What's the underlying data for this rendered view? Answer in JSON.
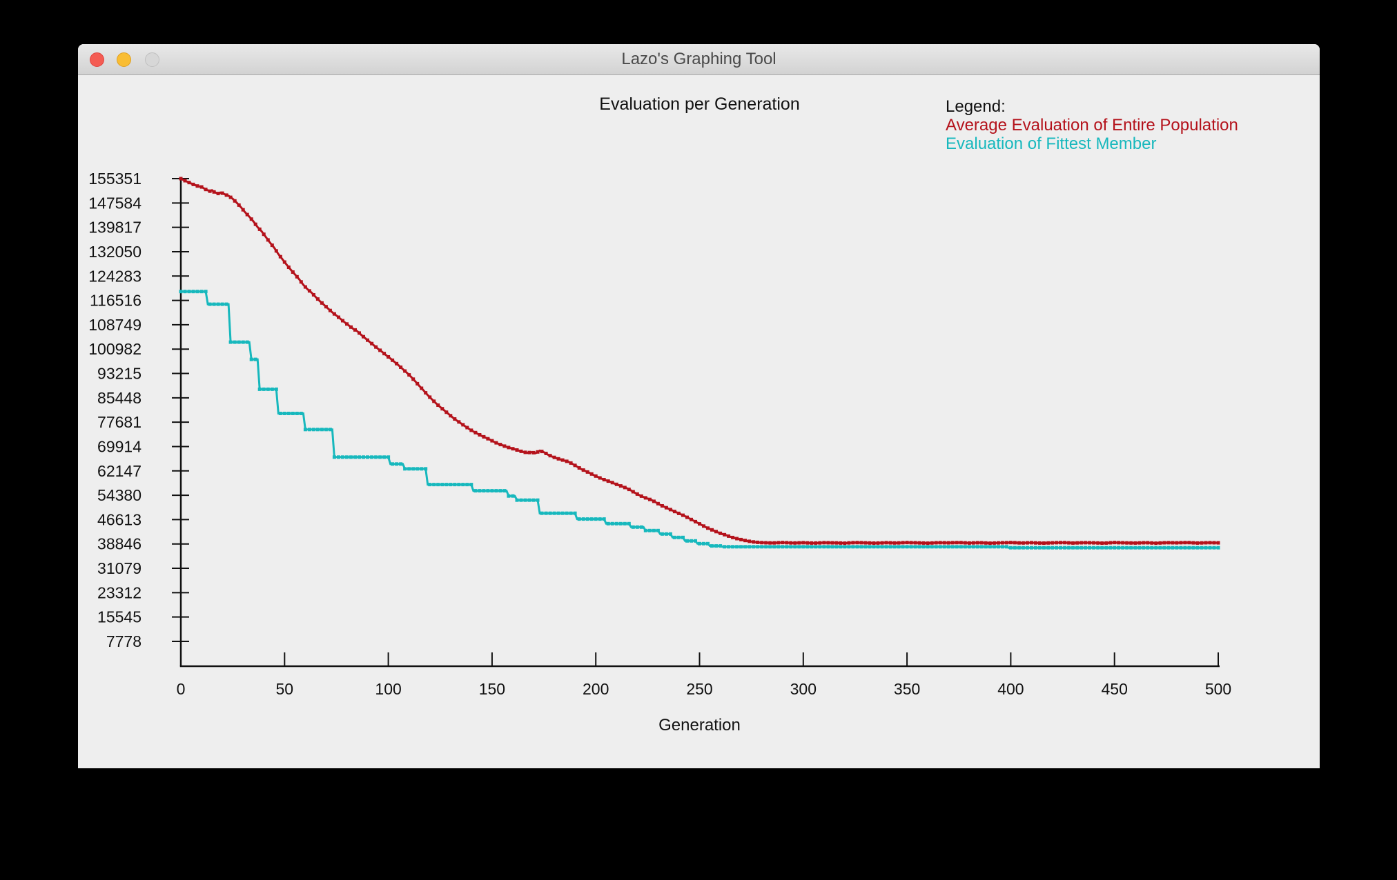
{
  "window": {
    "title": "Lazo's Graphing Tool"
  },
  "colors": {
    "series_avg": "#b4121b",
    "series_best": "#17b8bd",
    "axis": "#111111",
    "window_bg": "#eeeeee"
  },
  "chart_data": {
    "type": "line",
    "title": "Evaluation per Generation",
    "xlabel": "Generation",
    "legend_title": "Legend:",
    "legend_position": "top-right",
    "grid": false,
    "xlim": [
      0,
      500
    ],
    "x_ticks": [
      0,
      50,
      100,
      150,
      200,
      250,
      300,
      350,
      400,
      450,
      500
    ],
    "y_ticks": [
      155351,
      147584,
      139817,
      132050,
      124283,
      116516,
      108749,
      100982,
      93215,
      85448,
      77681,
      69914,
      62147,
      54380,
      46613,
      38846,
      31079,
      23312,
      15545,
      7778
    ],
    "series": [
      {
        "name": "Average Evaluation of Entire Population",
        "color": "#b4121b",
        "style": "noisy-line",
        "points": [
          [
            0,
            155351
          ],
          [
            2,
            154700
          ],
          [
            4,
            154100
          ],
          [
            6,
            153500
          ],
          [
            8,
            153000
          ],
          [
            10,
            152700
          ],
          [
            12,
            151900
          ],
          [
            14,
            151350
          ],
          [
            15,
            151650
          ],
          [
            16,
            151100
          ],
          [
            18,
            150600
          ],
          [
            19,
            150900
          ],
          [
            20,
            150700
          ],
          [
            22,
            150100
          ],
          [
            23,
            149900
          ],
          [
            25,
            148900
          ],
          [
            27,
            147600
          ],
          [
            29,
            146200
          ],
          [
            31,
            144600
          ],
          [
            33,
            143200
          ],
          [
            35,
            141700
          ],
          [
            37,
            139900
          ],
          [
            39,
            138500
          ],
          [
            41,
            136700
          ],
          [
            43,
            134900
          ],
          [
            45,
            133300
          ],
          [
            47,
            131300
          ],
          [
            49,
            129600
          ],
          [
            51,
            127900
          ],
          [
            53,
            126300
          ],
          [
            55,
            124800
          ],
          [
            57,
            123300
          ],
          [
            59,
            121500
          ],
          [
            61,
            120100
          ],
          [
            63,
            119000
          ],
          [
            65,
            117600
          ],
          [
            67,
            116300
          ],
          [
            69,
            115100
          ],
          [
            71,
            113900
          ],
          [
            73,
            112700
          ],
          [
            75,
            111700
          ],
          [
            77,
            110600
          ],
          [
            79,
            109500
          ],
          [
            81,
            108500
          ],
          [
            83,
            107500
          ],
          [
            85,
            106700
          ],
          [
            87,
            105500
          ],
          [
            89,
            104400
          ],
          [
            91,
            103300
          ],
          [
            93,
            102200
          ],
          [
            95,
            101100
          ],
          [
            97,
            100100
          ],
          [
            99,
            99000
          ],
          [
            101,
            98000
          ],
          [
            103,
            96900
          ],
          [
            105,
            95800
          ],
          [
            107,
            94600
          ],
          [
            109,
            93400
          ],
          [
            111,
            92100
          ],
          [
            113,
            90700
          ],
          [
            115,
            89200
          ],
          [
            117,
            87800
          ],
          [
            119,
            86300
          ],
          [
            121,
            85000
          ],
          [
            123,
            83700
          ],
          [
            125,
            82500
          ],
          [
            127,
            81400
          ],
          [
            129,
            80300
          ],
          [
            131,
            79200
          ],
          [
            133,
            78200
          ],
          [
            135,
            77300
          ],
          [
            137,
            76400
          ],
          [
            139,
            75500
          ],
          [
            141,
            74700
          ],
          [
            143,
            74000
          ],
          [
            145,
            73300
          ],
          [
            147,
            72700
          ],
          [
            149,
            72100
          ],
          [
            151,
            71400
          ],
          [
            153,
            70800
          ],
          [
            155,
            70300
          ],
          [
            157,
            69800
          ],
          [
            159,
            69400
          ],
          [
            161,
            69000
          ],
          [
            163,
            68600
          ],
          [
            165,
            68200
          ],
          [
            167,
            67900
          ],
          [
            169,
            68100
          ],
          [
            171,
            67800
          ],
          [
            173,
            68600
          ],
          [
            175,
            68100
          ],
          [
            177,
            67300
          ],
          [
            179,
            66700
          ],
          [
            181,
            66200
          ],
          [
            183,
            65800
          ],
          [
            185,
            65400
          ],
          [
            187,
            65000
          ],
          [
            189,
            64300
          ],
          [
            191,
            63500
          ],
          [
            193,
            62700
          ],
          [
            195,
            62100
          ],
          [
            197,
            61500
          ],
          [
            199,
            60800
          ],
          [
            201,
            60200
          ],
          [
            203,
            59600
          ],
          [
            205,
            59100
          ],
          [
            207,
            58700
          ],
          [
            209,
            58100
          ],
          [
            211,
            57600
          ],
          [
            213,
            57100
          ],
          [
            215,
            56600
          ],
          [
            217,
            55900
          ],
          [
            219,
            55100
          ],
          [
            221,
            54400
          ],
          [
            223,
            53800
          ],
          [
            225,
            53300
          ],
          [
            227,
            52800
          ],
          [
            229,
            52100
          ],
          [
            231,
            51300
          ],
          [
            233,
            50700
          ],
          [
            235,
            50100
          ],
          [
            237,
            49500
          ],
          [
            239,
            48900
          ],
          [
            241,
            48300
          ],
          [
            243,
            47700
          ],
          [
            245,
            47000
          ],
          [
            247,
            46300
          ],
          [
            249,
            45600
          ],
          [
            251,
            44900
          ],
          [
            253,
            44200
          ],
          [
            255,
            43600
          ],
          [
            257,
            43100
          ],
          [
            259,
            42500
          ],
          [
            261,
            42000
          ],
          [
            263,
            41600
          ],
          [
            265,
            41100
          ],
          [
            267,
            40700
          ],
          [
            269,
            40400
          ],
          [
            271,
            40100
          ],
          [
            273,
            39800
          ],
          [
            275,
            39600
          ],
          [
            277,
            39400
          ],
          [
            279,
            39300
          ],
          [
            281,
            39250
          ],
          [
            285,
            39150
          ],
          [
            290,
            39300
          ],
          [
            295,
            39150
          ],
          [
            300,
            39250
          ],
          [
            305,
            39100
          ],
          [
            310,
            39250
          ],
          [
            315,
            39200
          ],
          [
            320,
            39100
          ],
          [
            325,
            39300
          ],
          [
            330,
            39200
          ],
          [
            335,
            39100
          ],
          [
            340,
            39250
          ],
          [
            345,
            39150
          ],
          [
            350,
            39300
          ],
          [
            355,
            39200
          ],
          [
            360,
            39100
          ],
          [
            365,
            39250
          ],
          [
            370,
            39200
          ],
          [
            375,
            39300
          ],
          [
            380,
            39150
          ],
          [
            385,
            39250
          ],
          [
            390,
            39100
          ],
          [
            395,
            39200
          ],
          [
            400,
            39300
          ],
          [
            405,
            39150
          ],
          [
            410,
            39250
          ],
          [
            415,
            39100
          ],
          [
            420,
            39200
          ],
          [
            425,
            39300
          ],
          [
            430,
            39150
          ],
          [
            435,
            39250
          ],
          [
            440,
            39200
          ],
          [
            445,
            39100
          ],
          [
            450,
            39300
          ],
          [
            455,
            39200
          ],
          [
            460,
            39150
          ],
          [
            465,
            39250
          ],
          [
            470,
            39100
          ],
          [
            475,
            39250
          ],
          [
            480,
            39200
          ],
          [
            485,
            39300
          ],
          [
            490,
            39150
          ],
          [
            495,
            39250
          ],
          [
            500,
            39200
          ]
        ]
      },
      {
        "name": "Evaluation of Fittest Member",
        "color": "#17b8bd",
        "style": "step-line",
        "points": [
          [
            0,
            119340
          ],
          [
            12,
            119340
          ],
          [
            13,
            115310
          ],
          [
            23,
            115310
          ],
          [
            24,
            103210
          ],
          [
            33,
            103210
          ],
          [
            34,
            97710
          ],
          [
            37,
            97710
          ],
          [
            38,
            88180
          ],
          [
            46,
            88180
          ],
          [
            47,
            80470
          ],
          [
            59,
            80470
          ],
          [
            60,
            75330
          ],
          [
            73,
            75330
          ],
          [
            74,
            66540
          ],
          [
            100,
            66540
          ],
          [
            101,
            64340
          ],
          [
            107,
            64340
          ],
          [
            108,
            62800
          ],
          [
            118,
            62800
          ],
          [
            119,
            57780
          ],
          [
            140,
            57780
          ],
          [
            141,
            55800
          ],
          [
            157,
            55800
          ],
          [
            158,
            54130
          ],
          [
            161,
            54130
          ],
          [
            162,
            52810
          ],
          [
            172,
            52810
          ],
          [
            173,
            48630
          ],
          [
            190,
            48630
          ],
          [
            191,
            46800
          ],
          [
            204,
            46800
          ],
          [
            205,
            45330
          ],
          [
            216,
            45330
          ],
          [
            217,
            44230
          ],
          [
            223,
            44230
          ],
          [
            224,
            43130
          ],
          [
            230,
            43130
          ],
          [
            231,
            42030
          ],
          [
            236,
            42030
          ],
          [
            237,
            40930
          ],
          [
            242,
            40930
          ],
          [
            243,
            39830
          ],
          [
            248,
            39830
          ],
          [
            249,
            38950
          ],
          [
            254,
            38950
          ],
          [
            255,
            38210
          ],
          [
            260,
            38210
          ],
          [
            261,
            37950
          ],
          [
            398,
            37950
          ],
          [
            399,
            37650
          ],
          [
            500,
            37650
          ]
        ]
      }
    ]
  }
}
